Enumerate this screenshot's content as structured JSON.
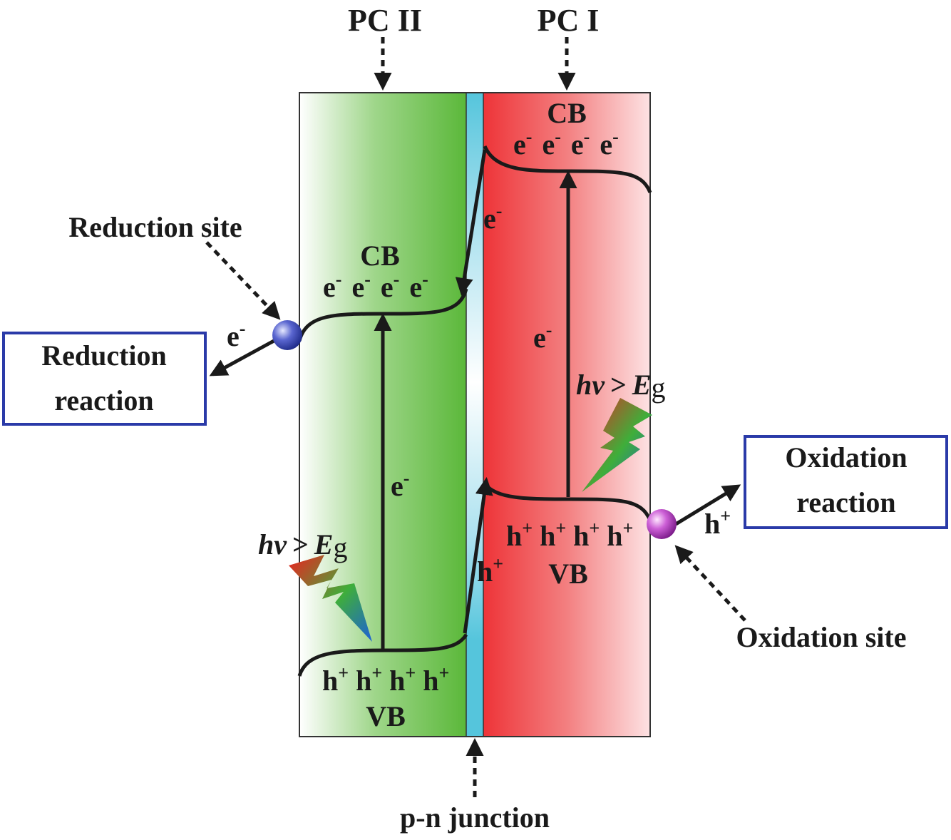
{
  "labels": {
    "pc2": "PC II",
    "pc1": "PC I",
    "reduction_site": "Reduction site",
    "oxidation_site": "Oxidation site",
    "pn_junction": "p-n junction",
    "reduction_box_line1": "Reduction",
    "reduction_box_line2": "reaction",
    "oxidation_box_line1": "Oxidation",
    "oxidation_box_line2": "reaction"
  },
  "pc2": {
    "cb": "CB",
    "vb": "VB",
    "electron": "e",
    "hole": "h",
    "minus": "-",
    "plus": "+",
    "photon_hv": "hv",
    "photon_gt": ">",
    "photon_E": "E",
    "photon_g": "g"
  },
  "pc1": {
    "cb": "CB",
    "vb": "VB",
    "electron": "e",
    "hole": "h",
    "minus": "-",
    "plus": "+",
    "photon_hv": "hv",
    "photon_gt": ">",
    "photon_E": "E",
    "photon_g": "g"
  },
  "transfer": {
    "electron": "e",
    "hole": "h",
    "minus": "-",
    "plus": "+"
  },
  "colors": {
    "pc2_green": "#5bb83a",
    "pc1_red": "#ee3438",
    "junction_cyan": "#55c5dc",
    "reduction_site_blue": "#3545b0",
    "oxidation_site_purple": "#b03cc0",
    "box_border": "#2a3aa8"
  },
  "icons": {
    "reduction_site": "sphere-icon",
    "oxidation_site": "sphere-icon",
    "photon": "lightning-bolt-icon"
  }
}
